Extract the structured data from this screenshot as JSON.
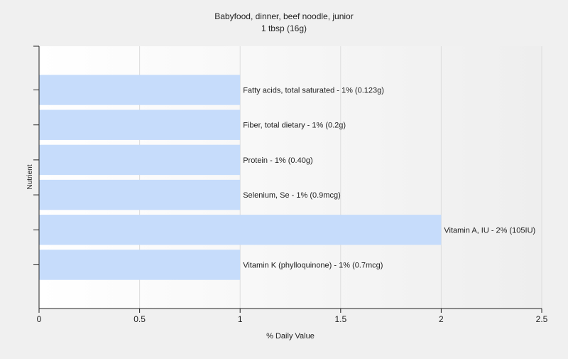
{
  "chart_data": {
    "type": "bar",
    "orientation": "horizontal",
    "title": "Babyfood, dinner, beef noodle, junior",
    "subtitle": "1 tbsp (16g)",
    "xlabel": "% Daily Value",
    "ylabel": "Nutrient",
    "xlim": [
      0,
      2.5
    ],
    "xticks": [
      0,
      0.5,
      1,
      1.5,
      2,
      2.5
    ],
    "xtick_labels": [
      "0",
      "0.5",
      "1",
      "1.5",
      "2",
      "2.5"
    ],
    "grid": true,
    "legend": "none",
    "bar_color": "#c6dcfb",
    "categories": [
      "Fatty acids, total saturated",
      "Fiber, total dietary",
      "Protein",
      "Selenium, Se",
      "Vitamin A, IU",
      "Vitamin K (phylloquinone)"
    ],
    "values": [
      1,
      1,
      1,
      1,
      2,
      1
    ],
    "data_labels": [
      "Fatty acids, total saturated - 1% (0.123g)",
      "Fiber, total dietary - 1% (0.2g)",
      "Protein - 1% (0.40g)",
      "Selenium, Se - 1% (0.9mcg)",
      "Vitamin A, IU - 2% (105IU)",
      "Vitamin K (phylloquinone) - 1% (0.7mcg)"
    ]
  }
}
